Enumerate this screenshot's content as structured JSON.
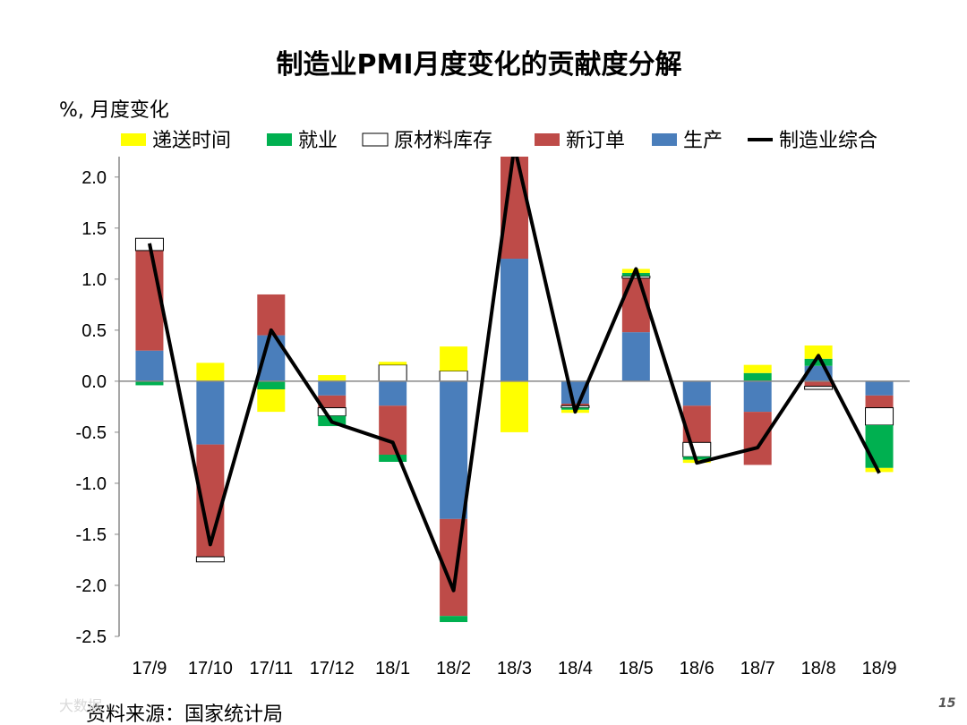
{
  "page": {
    "source_note": "资料来源：国家统计局",
    "page_number": "15",
    "watermark": "大数据"
  },
  "chart_data": {
    "type": "bar",
    "stacked": true,
    "title": "制造业PMI月度变化的贡献度分解",
    "ylabel": "%, 月度变化",
    "xlabel": "",
    "ylim": [
      -2.5,
      2.2
    ],
    "yticks": [
      2.0,
      1.5,
      1.0,
      0.5,
      0.0,
      -0.5,
      -1.0,
      -1.5,
      -2.0,
      -2.5
    ],
    "ytick_labels": [
      "2.0",
      "1.5",
      "1.0",
      "0.5",
      "0.0",
      "-0.5",
      "-1.0",
      "-1.5",
      "-2.0",
      "-2.5"
    ],
    "categories": [
      "17/9",
      "17/10",
      "17/11",
      "17/12",
      "18/1",
      "18/2",
      "18/3",
      "18/4",
      "18/5",
      "18/6",
      "18/7",
      "18/8",
      "18/9"
    ],
    "legend_position": "top",
    "grid": false,
    "series": [
      {
        "name": "生产",
        "color": "#4a7ebb",
        "values": [
          0.3,
          -0.62,
          0.45,
          -0.14,
          -0.24,
          -1.35,
          1.2,
          -0.22,
          0.48,
          -0.24,
          -0.3,
          0.15,
          -0.14
        ]
      },
      {
        "name": "新订单",
        "color": "#be4b48",
        "values": [
          0.98,
          -1.1,
          0.4,
          -0.12,
          -0.48,
          -0.95,
          1.05,
          -0.02,
          0.53,
          -0.36,
          -0.52,
          -0.05,
          -0.12
        ]
      },
      {
        "name": "原材料库存",
        "color": "#ffffff",
        "values": [
          0.12,
          -0.05,
          0.0,
          -0.08,
          0.16,
          0.1,
          0.0,
          -0.02,
          0.02,
          -0.14,
          0.0,
          -0.03,
          -0.17
        ]
      },
      {
        "name": "就业",
        "color": "#00b050",
        "values": [
          -0.04,
          0.0,
          -0.08,
          -0.1,
          -0.07,
          -0.06,
          0.0,
          -0.02,
          0.03,
          -0.03,
          0.08,
          0.07,
          -0.42
        ]
      },
      {
        "name": "递送时间",
        "color": "#ffff00",
        "values": [
          0.0,
          0.18,
          -0.22,
          0.06,
          0.03,
          0.24,
          -0.5,
          -0.03,
          0.04,
          -0.03,
          0.08,
          0.13,
          -0.04
        ]
      }
    ],
    "line": {
      "name": "制造业综合",
      "color": "#000000",
      "values": [
        1.35,
        -1.6,
        0.5,
        -0.4,
        -0.6,
        -2.05,
        2.3,
        -0.3,
        1.1,
        -0.8,
        -0.65,
        0.25,
        -0.9
      ]
    },
    "legend_order": [
      "递送时间",
      "就业",
      "原材料库存",
      "新订单",
      "生产",
      "制造业综合"
    ]
  }
}
